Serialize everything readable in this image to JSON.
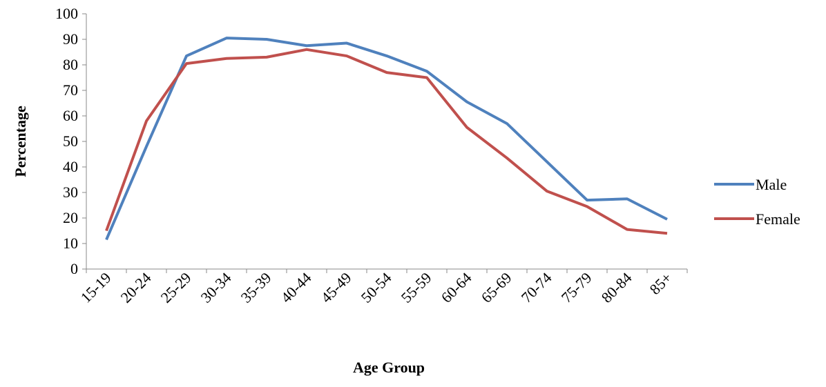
{
  "chart_data": {
    "type": "line",
    "xlabel": "Age Group",
    "ylabel": "Percentage",
    "categories": [
      "15-19",
      "20-24",
      "25-29",
      "30-34",
      "35-39",
      "40-44",
      "45-49",
      "50-54",
      "55-59",
      "60-64",
      "65-69",
      "70-74",
      "75-79",
      "80-84",
      "85+"
    ],
    "series": [
      {
        "name": "Male",
        "color": "#4f81bd",
        "values": [
          11.5,
          48,
          83.5,
          90.5,
          90,
          87.5,
          88.5,
          83.5,
          77.5,
          65.5,
          57,
          42,
          27,
          27.5,
          19.5
        ]
      },
      {
        "name": "Female",
        "color": "#c0504d",
        "values": [
          15,
          58,
          80.5,
          82.5,
          83,
          86,
          83.5,
          77,
          75,
          55.5,
          43.5,
          30.5,
          24.5,
          15.5,
          14
        ]
      }
    ],
    "ylim": [
      0,
      100
    ],
    "yticks": [
      0,
      10,
      20,
      30,
      40,
      50,
      60,
      70,
      80,
      90,
      100
    ],
    "grid": false,
    "legend": "right"
  }
}
